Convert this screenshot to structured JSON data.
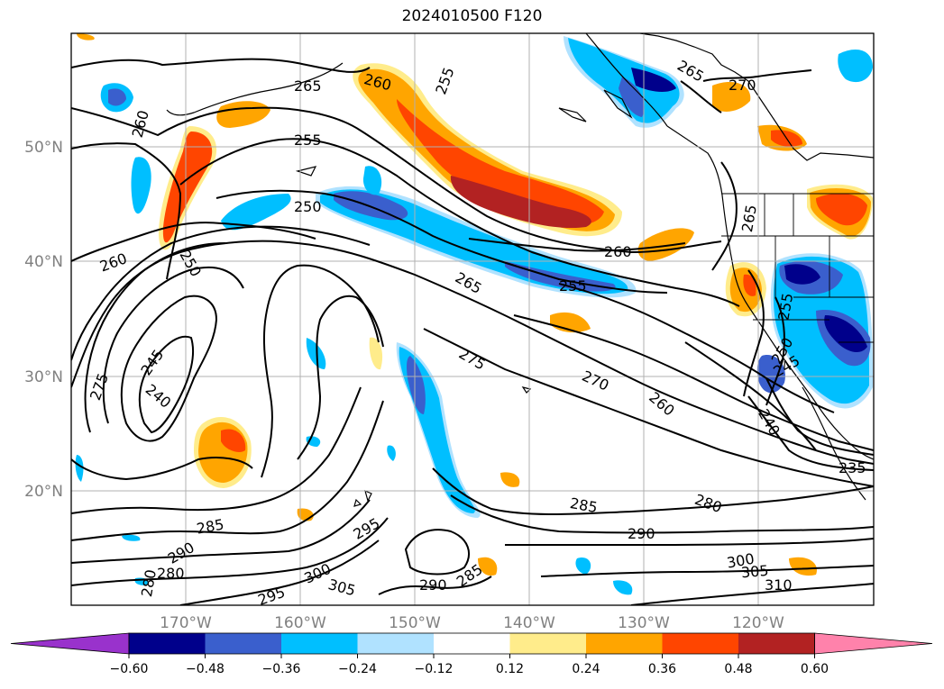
{
  "title": "2024010500 F120",
  "latitude_labels": [
    "50°N",
    "40°N",
    "30°N",
    "20°N"
  ],
  "longitude_labels": [
    "170°W",
    "160°W",
    "150°W",
    "140°W",
    "130°W",
    "120°W"
  ],
  "contour_labels": [
    {
      "text": "255"
    },
    {
      "text": "260"
    },
    {
      "text": "265"
    },
    {
      "text": "265"
    },
    {
      "text": "270"
    },
    {
      "text": "260"
    },
    {
      "text": "255"
    },
    {
      "text": "250"
    },
    {
      "text": "260"
    },
    {
      "text": "250"
    },
    {
      "text": "245"
    },
    {
      "text": "240"
    },
    {
      "text": "275"
    },
    {
      "text": "265"
    },
    {
      "text": "255"
    },
    {
      "text": "260"
    },
    {
      "text": "275"
    },
    {
      "text": "270"
    },
    {
      "text": "260"
    },
    {
      "text": "240"
    },
    {
      "text": "245"
    },
    {
      "text": "250"
    },
    {
      "text": "255"
    },
    {
      "text": "265"
    },
    {
      "text": "235"
    },
    {
      "text": "285"
    },
    {
      "text": "280"
    },
    {
      "text": "290"
    },
    {
      "text": "285"
    },
    {
      "text": "290"
    },
    {
      "text": "280"
    },
    {
      "text": "280"
    },
    {
      "text": "295"
    },
    {
      "text": "300"
    },
    {
      "text": "305"
    },
    {
      "text": "290"
    },
    {
      "text": "285"
    },
    {
      "text": "295"
    },
    {
      "text": "300"
    },
    {
      "text": "305"
    },
    {
      "text": "310"
    }
  ],
  "colorbar": {
    "tick_labels": [
      "−0.60",
      "−0.48",
      "−0.36",
      "−0.24",
      "−0.12",
      "0.12",
      "0.24",
      "0.36",
      "0.48",
      "0.60"
    ],
    "colors": [
      "#9932CC",
      "#00008B",
      "#3A5FCD",
      "#00BFFF",
      "#B0E2FF",
      "#FFFFFF",
      "#FFEC8B",
      "#FFA500",
      "#FF4500",
      "#B22222",
      "#FF82AB"
    ]
  },
  "shading_colors": {
    "neg_strong": "#00008B",
    "neg_mid": "#3A5FCD",
    "neg_light": "#00BFFF",
    "neg_pale": "#B0E2FF",
    "pos_pale": "#FFEC8B",
    "pos_light": "#FFA500",
    "pos_mid": "#FF4500",
    "pos_strong": "#B22222"
  }
}
